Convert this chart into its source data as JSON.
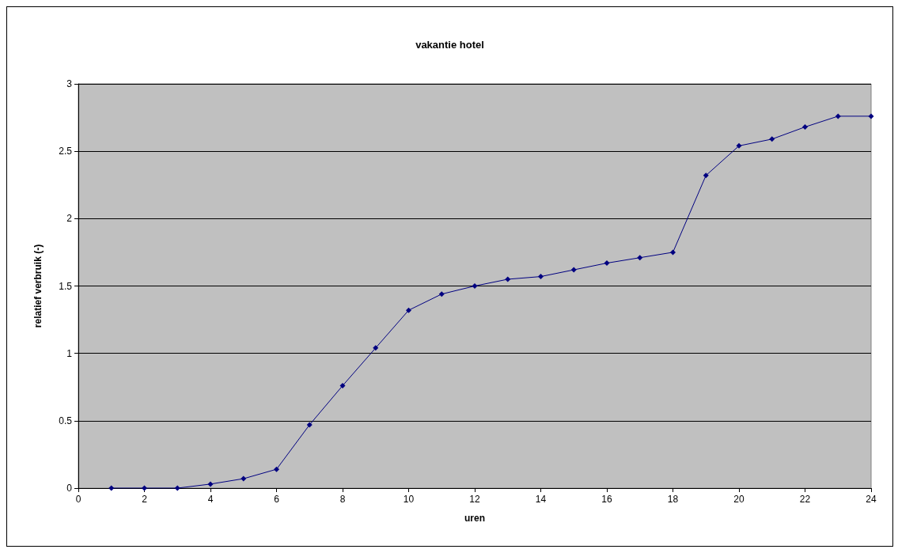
{
  "chart_data": {
    "type": "line",
    "title": "vakantie hotel",
    "xlabel": "uren",
    "ylabel": "relatief verbruik (-)",
    "x": [
      1,
      2,
      3,
      4,
      5,
      6,
      7,
      8,
      9,
      10,
      11,
      12,
      13,
      14,
      15,
      16,
      17,
      18,
      19,
      20,
      21,
      22,
      23,
      24
    ],
    "series": [
      {
        "color": "#000080",
        "values": [
          0,
          0,
          0,
          0.03,
          0.07,
          0.14,
          0.47,
          0.76,
          1.04,
          1.32,
          1.44,
          1.5,
          1.55,
          1.57,
          1.62,
          1.67,
          1.71,
          1.75,
          2.32,
          2.54,
          2.59,
          2.68,
          2.76,
          2.76
        ]
      }
    ],
    "xlim": [
      0,
      24
    ],
    "xticks": [
      0,
      2,
      4,
      6,
      8,
      10,
      12,
      14,
      16,
      18,
      20,
      22,
      24
    ],
    "ylim": [
      0,
      3
    ],
    "yticks": [
      0,
      0.5,
      1,
      1.5,
      2,
      2.5,
      3
    ],
    "grid": "y",
    "marker": "diamond",
    "line_style": "solid"
  }
}
